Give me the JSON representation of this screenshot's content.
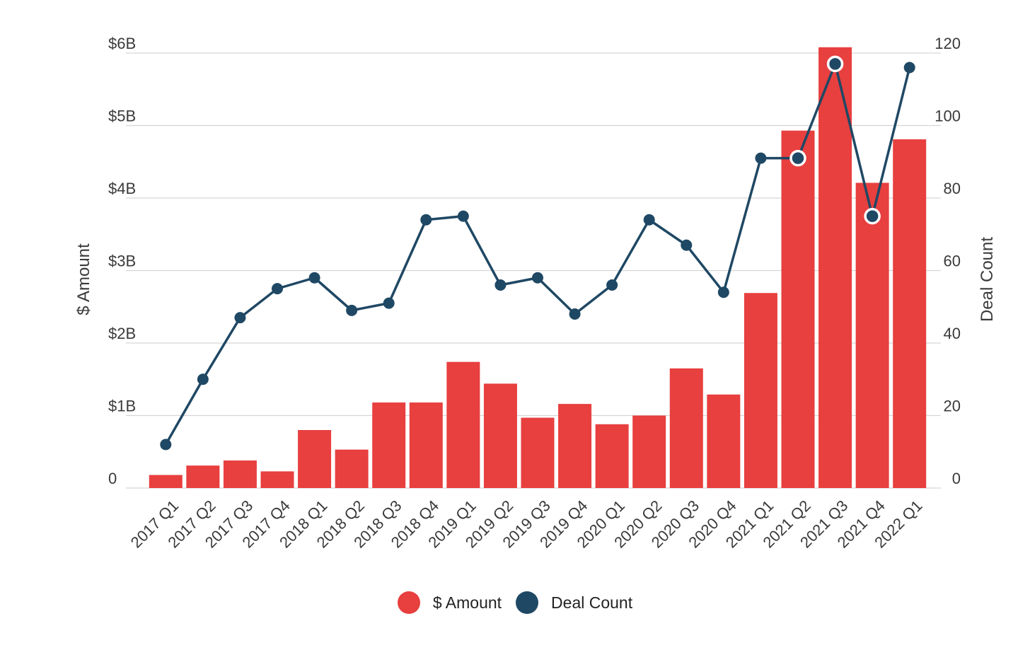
{
  "chart_data": {
    "type": "bar",
    "title": "",
    "categories": [
      "2017 Q1",
      "2017 Q2",
      "2017 Q3",
      "2017 Q4",
      "2018 Q1",
      "2018 Q2",
      "2018 Q3",
      "2018 Q4",
      "2019 Q1",
      "2019 Q2",
      "2019 Q3",
      "2019 Q4",
      "2020 Q1",
      "2020 Q2",
      "2020 Q3",
      "2020 Q4",
      "2021 Q1",
      "2021 Q2",
      "2021 Q3",
      "2021 Q4",
      "2022 Q1"
    ],
    "series": [
      {
        "name": "$ Amount",
        "type": "bar",
        "axis": "left",
        "color": "#E83F3F",
        "values": [
          0.18,
          0.31,
          0.38,
          0.23,
          0.8,
          0.53,
          1.18,
          1.18,
          1.74,
          1.44,
          0.97,
          1.16,
          0.88,
          1.0,
          1.65,
          1.29,
          2.69,
          4.93,
          6.08,
          4.21,
          4.81
        ]
      },
      {
        "name": "Deal Count",
        "type": "line",
        "axis": "right",
        "color": "#1F4864",
        "values": [
          12,
          30,
          47,
          55,
          58,
          49,
          51,
          74,
          75,
          56,
          58,
          48,
          56,
          74,
          67,
          54,
          91,
          91,
          117,
          75,
          116
        ],
        "highlighted_points": [
          "2021 Q2",
          "2021 Q3",
          "2021 Q4"
        ]
      }
    ],
    "y_left": {
      "label": "$ Amount",
      "ylim": [
        0,
        6
      ],
      "ticks": [
        0,
        1,
        2,
        3,
        4,
        5,
        6
      ],
      "tick_labels": [
        "0",
        "$1B",
        "$2B",
        "$3B",
        "$4B",
        "$5B",
        "$6B"
      ]
    },
    "y_right": {
      "label": "Deal Count",
      "ylim": [
        0,
        120
      ],
      "ticks": [
        0,
        20,
        40,
        60,
        80,
        100,
        120
      ],
      "tick_labels": [
        "0",
        "20",
        "40",
        "60",
        "80",
        "100",
        "120"
      ]
    },
    "grid": true,
    "legend_position": "bottom-center"
  },
  "legend": {
    "amount_label": "$ Amount",
    "count_label": "Deal Count",
    "amount_color": "#E83F3F",
    "count_color": "#1F4864"
  }
}
